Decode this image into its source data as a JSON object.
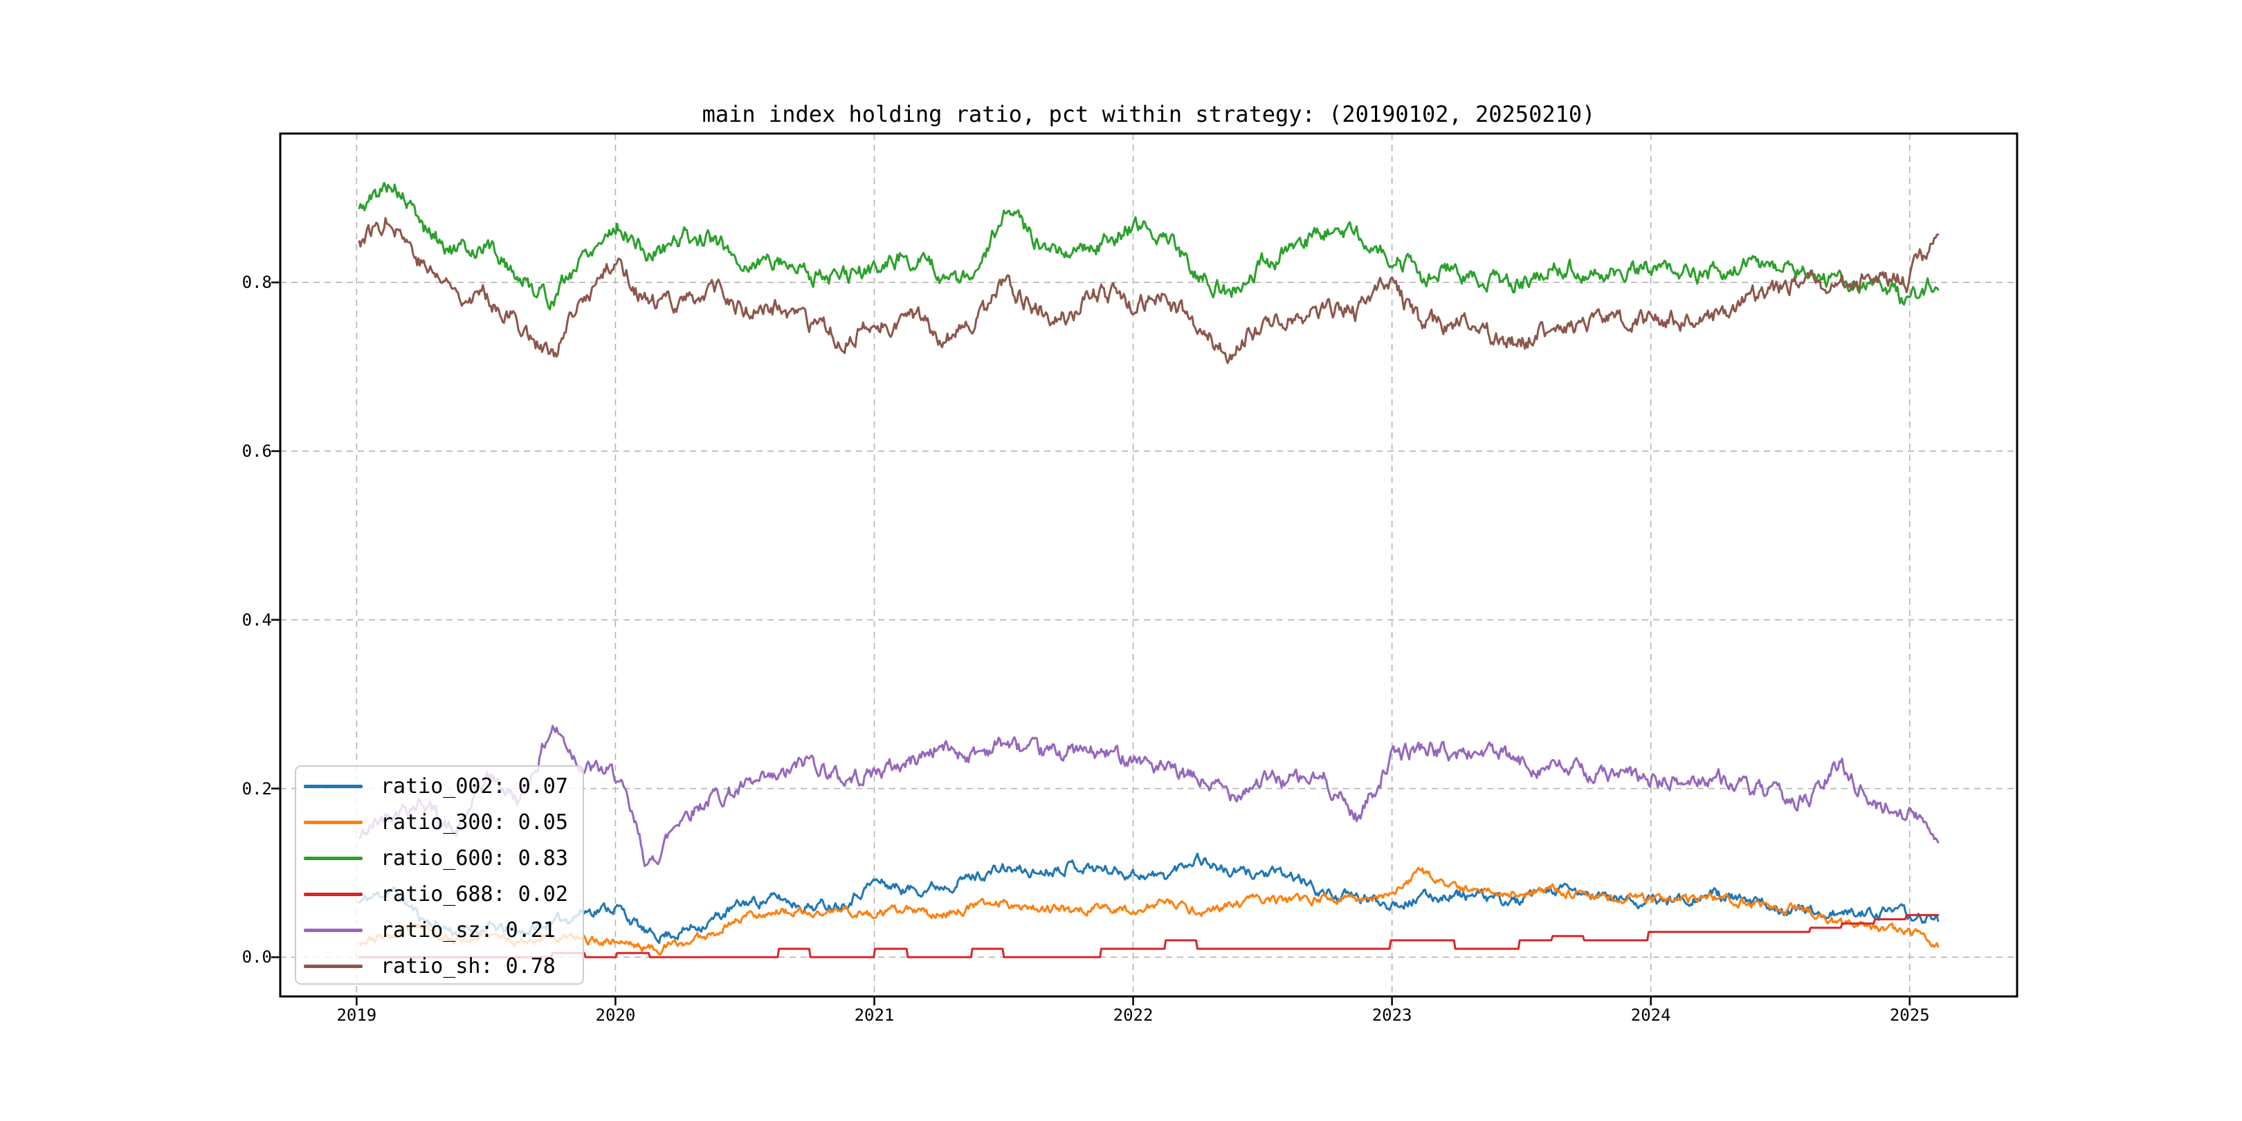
{
  "page": {
    "background": "#ffffff"
  },
  "chart_data": {
    "type": "line",
    "title": "main index holding ratio, pct within strategy: (20190102, 20250210)",
    "xlabel": "",
    "ylabel": "",
    "date_range": [
      "20190102",
      "20250210"
    ],
    "grid": true,
    "grid_color": "#b3b3b3",
    "spine_color": "#000000",
    "plot_background": "#ffffff",
    "xlim": [
      2018.705,
      2025.415
    ],
    "ylim": [
      -0.0465,
      0.9765
    ],
    "x_ticks": {
      "labels": [
        "2019",
        "2020",
        "2021",
        "2022",
        "2023",
        "2024",
        "2025"
      ],
      "values": [
        2019,
        2020,
        2021,
        2022,
        2023,
        2024,
        2025
      ]
    },
    "y_ticks": {
      "labels": [
        "0.0",
        "0.2",
        "0.4",
        "0.6",
        "0.8"
      ],
      "values": [
        0.0,
        0.2,
        0.4,
        0.6,
        0.8
      ]
    },
    "x_start": 2019.01,
    "x_end": 2025.11,
    "x_spacing": "even",
    "legend": {
      "position": "lower left",
      "entries": [
        {
          "label": "ratio_002: 0.07",
          "color": "#1f77b4"
        },
        {
          "label": "ratio_300: 0.05",
          "color": "#ff7f0e"
        },
        {
          "label": "ratio_600: 0.83",
          "color": "#2ca02c"
        },
        {
          "label": "ratio_688: 0.02",
          "color": "#d62728"
        },
        {
          "label": "ratio_sz: 0.21",
          "color": "#9467bd"
        },
        {
          "label": "ratio_sh: 0.78",
          "color": "#8c564b"
        }
      ]
    },
    "series": [
      {
        "name": "ratio_002",
        "color": "#1f77b4",
        "mean_shown": 0.07,
        "interp": "linear",
        "noise": 0.01,
        "seed": 11,
        "values": [
          0.065,
          0.08,
          0.045,
          0.03,
          0.035,
          0.03,
          0.04,
          0.055,
          0.06,
          0.025,
          0.03,
          0.045,
          0.065,
          0.07,
          0.06,
          0.065,
          0.09,
          0.08,
          0.085,
          0.095,
          0.105,
          0.1,
          0.11,
          0.105,
          0.1,
          0.095,
          0.12,
          0.1,
          0.1,
          0.095,
          0.075,
          0.07,
          0.065,
          0.07,
          0.075,
          0.07,
          0.065,
          0.08,
          0.075,
          0.07,
          0.065,
          0.07,
          0.075,
          0.065,
          0.06,
          0.055,
          0.05,
          0.055,
          0.05,
          0.045
        ]
      },
      {
        "name": "ratio_300",
        "color": "#ff7f0e",
        "mean_shown": 0.05,
        "interp": "linear",
        "noise": 0.008,
        "seed": 23,
        "values": [
          0.02,
          0.025,
          0.035,
          0.02,
          0.025,
          0.02,
          0.025,
          0.02,
          0.02,
          0.01,
          0.015,
          0.03,
          0.05,
          0.055,
          0.05,
          0.055,
          0.05,
          0.055,
          0.05,
          0.06,
          0.065,
          0.06,
          0.055,
          0.06,
          0.055,
          0.065,
          0.055,
          0.06,
          0.07,
          0.065,
          0.07,
          0.07,
          0.075,
          0.1,
          0.08,
          0.08,
          0.075,
          0.08,
          0.075,
          0.07,
          0.07,
          0.065,
          0.07,
          0.065,
          0.06,
          0.055,
          0.04,
          0.035,
          0.03,
          0.015
        ]
      },
      {
        "name": "ratio_600",
        "color": "#2ca02c",
        "mean_shown": 0.83,
        "interp": "linear",
        "noise": 0.016,
        "seed": 5,
        "values": [
          0.885,
          0.92,
          0.865,
          0.835,
          0.845,
          0.805,
          0.78,
          0.835,
          0.87,
          0.83,
          0.855,
          0.85,
          0.82,
          0.83,
          0.81,
          0.805,
          0.815,
          0.835,
          0.81,
          0.8,
          0.88,
          0.85,
          0.84,
          0.845,
          0.868,
          0.855,
          0.815,
          0.785,
          0.82,
          0.84,
          0.858,
          0.86,
          0.835,
          0.805,
          0.815,
          0.81,
          0.8,
          0.815,
          0.815,
          0.81,
          0.82,
          0.81,
          0.81,
          0.82,
          0.815,
          0.81,
          0.8,
          0.8,
          0.778,
          0.8
        ]
      },
      {
        "name": "ratio_688",
        "color": "#d62728",
        "mean_shown": 0.02,
        "interp": "step",
        "noise": 0.0,
        "seed": 1,
        "values": [
          0,
          0,
          0,
          0,
          0,
          0,
          0.005,
          0,
          0.005,
          0,
          0,
          0,
          0,
          0.01,
          0,
          0,
          0.01,
          0,
          0,
          0.01,
          0,
          0,
          0,
          0.01,
          0.01,
          0.02,
          0.01,
          0.01,
          0.01,
          0.01,
          0.01,
          0.01,
          0.02,
          0.02,
          0.01,
          0.01,
          0.02,
          0.025,
          0.02,
          0.02,
          0.03,
          0.03,
          0.03,
          0.03,
          0.03,
          0.035,
          0.04,
          0.045,
          0.05,
          0.065
        ]
      },
      {
        "name": "ratio_sz",
        "color": "#9467bd",
        "mean_shown": 0.21,
        "interp": "linear",
        "noise": 0.015,
        "seed": 42,
        "values": [
          0.14,
          0.175,
          0.185,
          0.145,
          0.215,
          0.185,
          0.275,
          0.225,
          0.215,
          0.105,
          0.17,
          0.19,
          0.2,
          0.21,
          0.235,
          0.21,
          0.22,
          0.23,
          0.25,
          0.24,
          0.255,
          0.24,
          0.245,
          0.24,
          0.24,
          0.22,
          0.21,
          0.195,
          0.21,
          0.21,
          0.21,
          0.165,
          0.235,
          0.25,
          0.24,
          0.245,
          0.23,
          0.225,
          0.22,
          0.215,
          0.21,
          0.205,
          0.215,
          0.2,
          0.19,
          0.185,
          0.23,
          0.18,
          0.175,
          0.145
        ]
      },
      {
        "name": "ratio_sh",
        "color": "#8c564b",
        "mean_shown": 0.78,
        "interp": "linear",
        "noise": 0.017,
        "seed": 77,
        "values": [
          0.85,
          0.88,
          0.82,
          0.79,
          0.785,
          0.75,
          0.71,
          0.78,
          0.83,
          0.77,
          0.78,
          0.79,
          0.765,
          0.77,
          0.745,
          0.735,
          0.745,
          0.76,
          0.74,
          0.74,
          0.8,
          0.77,
          0.76,
          0.788,
          0.775,
          0.78,
          0.745,
          0.715,
          0.75,
          0.76,
          0.77,
          0.765,
          0.8,
          0.745,
          0.755,
          0.74,
          0.73,
          0.745,
          0.75,
          0.75,
          0.755,
          0.755,
          0.76,
          0.78,
          0.79,
          0.8,
          0.79,
          0.815,
          0.8,
          0.855
        ]
      }
    ]
  }
}
